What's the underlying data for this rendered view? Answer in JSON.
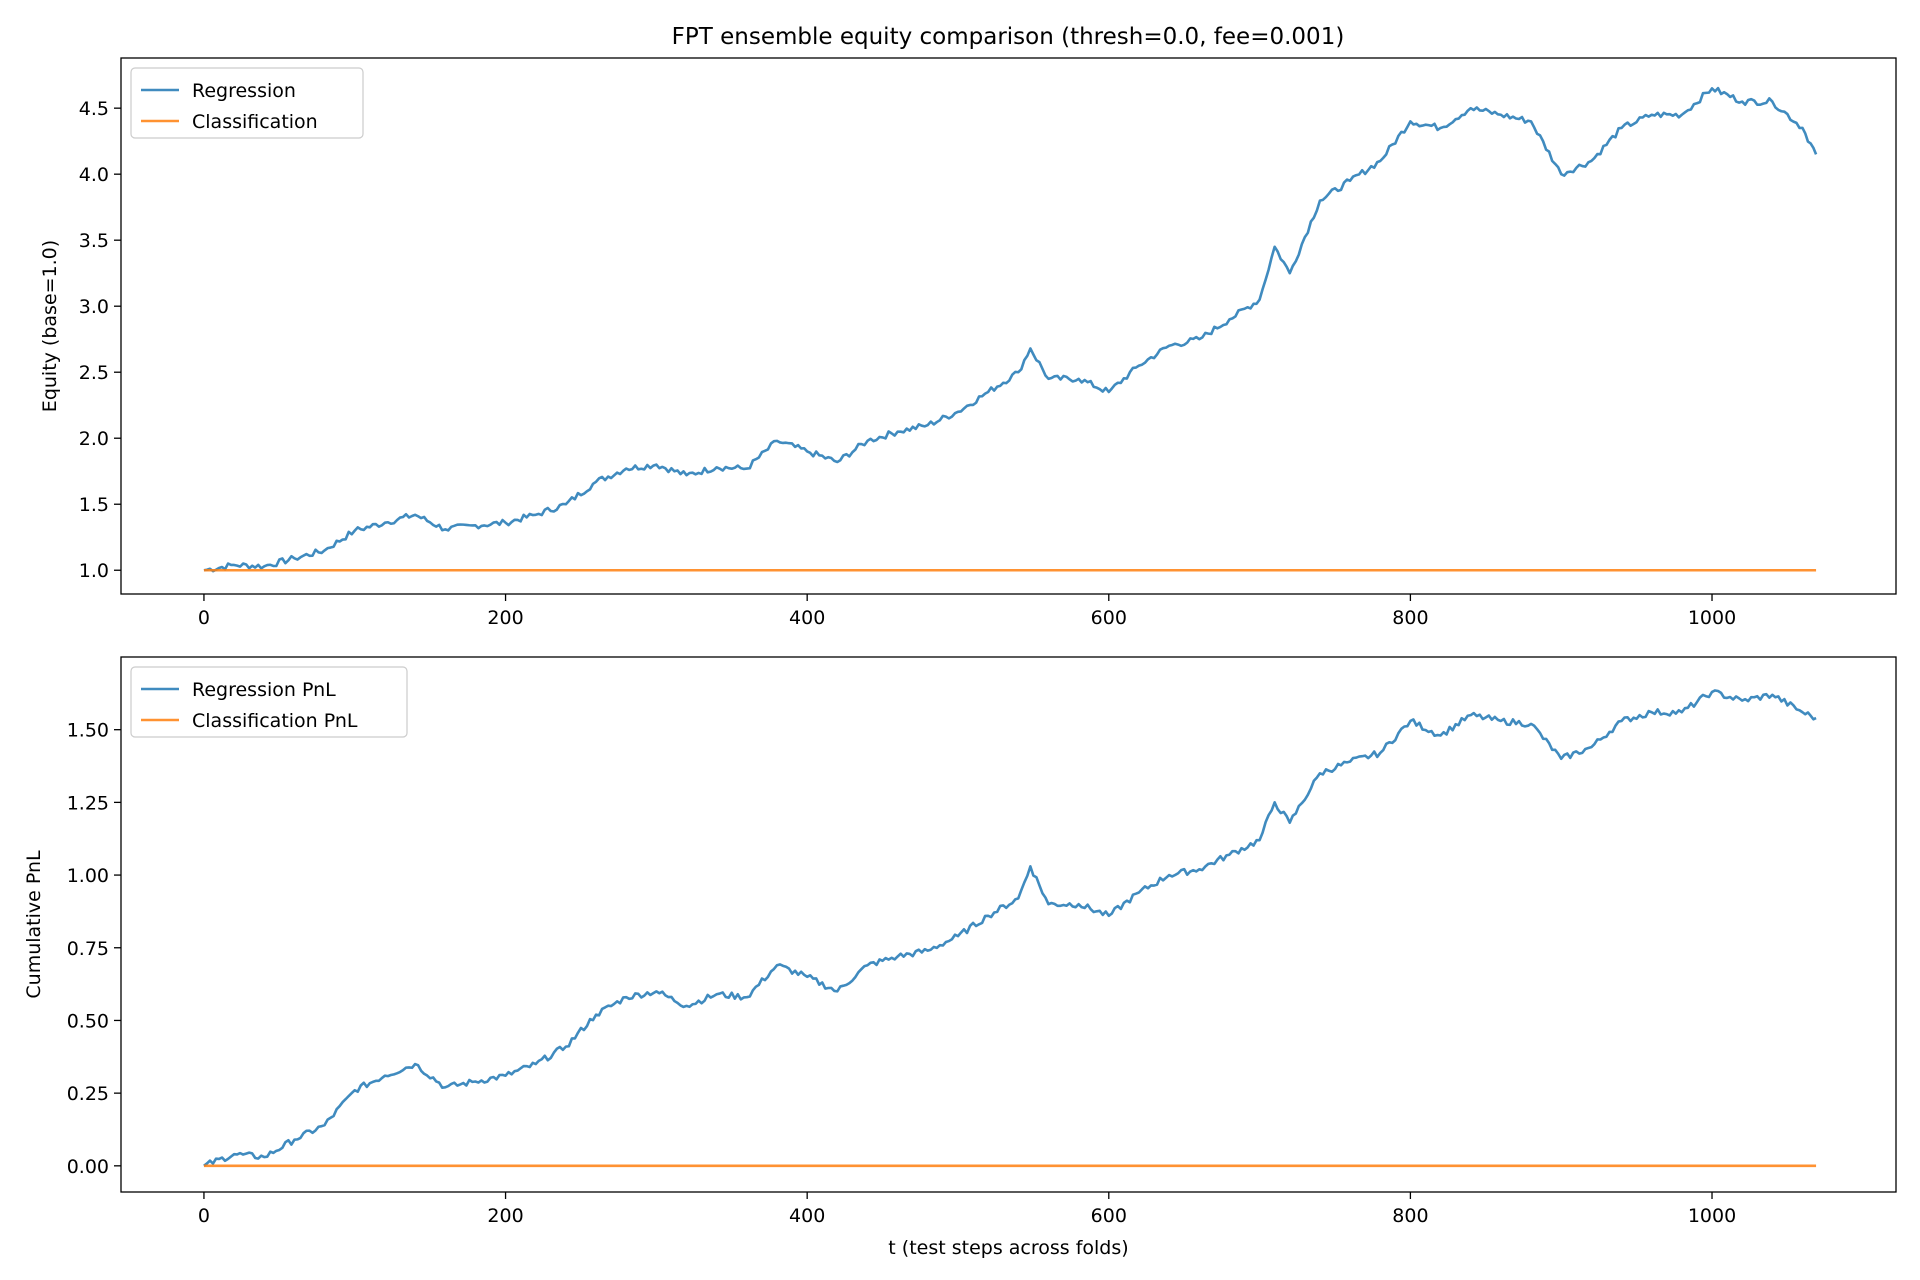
{
  "title": "FPT ensemble equity comparison (thresh=0.0, fee=0.001)",
  "colors": {
    "regression": "#1f77b4",
    "classification": "#ff7f0e"
  },
  "chart_data": [
    {
      "type": "line",
      "title": "FPT ensemble equity comparison (thresh=0.0, fee=0.001)",
      "xlabel": "",
      "ylabel": "Equity (base=1.0)",
      "xlim": [
        -55,
        1122
      ],
      "ylim": [
        0.82,
        4.88
      ],
      "xticks": [
        0,
        200,
        400,
        600,
        800,
        1000
      ],
      "yticks": [
        1.0,
        1.5,
        2.0,
        2.5,
        3.0,
        3.5,
        4.0,
        4.5
      ],
      "ytick_labels": [
        "1.0",
        "1.5",
        "2.0",
        "2.5",
        "3.0",
        "3.5",
        "4.0",
        "4.5"
      ],
      "grid": false,
      "legend": "top-left",
      "series": [
        {
          "name": "Regression",
          "color": "#1f77b4",
          "x": [
            0,
            20,
            40,
            60,
            80,
            100,
            120,
            140,
            160,
            180,
            200,
            220,
            240,
            260,
            280,
            300,
            320,
            340,
            360,
            380,
            400,
            420,
            440,
            460,
            480,
            500,
            520,
            540,
            548,
            560,
            580,
            600,
            620,
            640,
            660,
            680,
            700,
            710,
            720,
            740,
            760,
            780,
            800,
            820,
            840,
            860,
            880,
            900,
            920,
            940,
            960,
            980,
            1000,
            1020,
            1040,
            1060,
            1069
          ],
          "values": [
            1.0,
            1.04,
            1.03,
            1.09,
            1.15,
            1.3,
            1.36,
            1.42,
            1.31,
            1.34,
            1.36,
            1.42,
            1.5,
            1.67,
            1.77,
            1.8,
            1.72,
            1.78,
            1.77,
            1.98,
            1.9,
            1.82,
            1.98,
            2.05,
            2.1,
            2.2,
            2.35,
            2.5,
            2.68,
            2.45,
            2.45,
            2.35,
            2.55,
            2.7,
            2.75,
            2.9,
            3.05,
            3.45,
            3.25,
            3.8,
            3.95,
            4.1,
            4.4,
            4.35,
            4.5,
            4.45,
            4.4,
            4.0,
            4.1,
            4.35,
            4.45,
            4.45,
            4.65,
            4.55,
            4.55,
            4.35,
            4.15
          ]
        },
        {
          "name": "Classification",
          "color": "#ff7f0e",
          "x": [
            0,
            1069
          ],
          "values": [
            1.0,
            1.0
          ]
        }
      ]
    },
    {
      "type": "line",
      "title": "",
      "xlabel": "t (test steps across folds)",
      "ylabel": "Cumulative PnL",
      "xlim": [
        -55,
        1122
      ],
      "ylim": [
        -0.09,
        1.75
      ],
      "xticks": [
        0,
        200,
        400,
        600,
        800,
        1000
      ],
      "yticks": [
        0.0,
        0.25,
        0.5,
        0.75,
        1.0,
        1.25,
        1.5
      ],
      "ytick_labels": [
        "0.00",
        "0.25",
        "0.50",
        "0.75",
        "1.00",
        "1.25",
        "1.50"
      ],
      "grid": false,
      "legend": "top-left",
      "series": [
        {
          "name": "Regression PnL",
          "color": "#1f77b4",
          "x": [
            0,
            20,
            40,
            60,
            80,
            100,
            120,
            140,
            160,
            180,
            200,
            220,
            240,
            260,
            280,
            300,
            320,
            340,
            360,
            380,
            400,
            420,
            440,
            460,
            480,
            500,
            520,
            540,
            548,
            560,
            580,
            600,
            620,
            640,
            660,
            680,
            700,
            710,
            720,
            740,
            760,
            780,
            800,
            820,
            840,
            860,
            880,
            900,
            920,
            940,
            960,
            980,
            1000,
            1020,
            1040,
            1060,
            1069
          ],
          "values": [
            0.0,
            0.04,
            0.03,
            0.09,
            0.14,
            0.26,
            0.31,
            0.35,
            0.27,
            0.29,
            0.31,
            0.35,
            0.41,
            0.52,
            0.58,
            0.6,
            0.55,
            0.59,
            0.58,
            0.69,
            0.65,
            0.6,
            0.69,
            0.72,
            0.74,
            0.79,
            0.86,
            0.92,
            1.03,
            0.9,
            0.9,
            0.86,
            0.94,
            1.0,
            1.02,
            1.07,
            1.12,
            1.25,
            1.18,
            1.35,
            1.39,
            1.42,
            1.53,
            1.48,
            1.55,
            1.53,
            1.52,
            1.4,
            1.44,
            1.53,
            1.56,
            1.56,
            1.63,
            1.6,
            1.62,
            1.56,
            1.54
          ]
        },
        {
          "name": "Classification PnL",
          "color": "#ff7f0e",
          "x": [
            0,
            1069
          ],
          "values": [
            0.0,
            0.0
          ]
        }
      ]
    }
  ]
}
